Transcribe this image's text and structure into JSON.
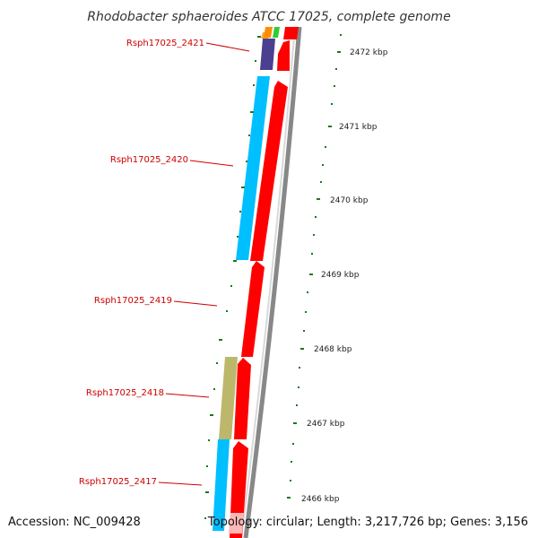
{
  "title": "Rhodobacter sphaeroides ATCC 17025, complete genome",
  "accession": "Accession: NC_009428",
  "topology": "Topology: circular; Length: 3,217,726 bp; Genes: 3,156",
  "gene_labels": [
    "Rsph17025_2421",
    "Rsph17025_2420",
    "Rsph17025_2419",
    "Rsph17025_2418",
    "Rsph17025_2417"
  ],
  "scale_labels": [
    "2472 kbp",
    "2471 kbp",
    "2470 kbp",
    "2469 kbp",
    "2468 kbp",
    "2467 kbp",
    "2466 kbp"
  ],
  "colors": {
    "forward_strand": "#ff0000",
    "reverse_strand": "#00bfff",
    "purple_block": "#4b3f8f",
    "olive_block": "#bdb76b",
    "label": "#cc0000",
    "tick": "#1a7a1a",
    "backbone": "#888888"
  }
}
